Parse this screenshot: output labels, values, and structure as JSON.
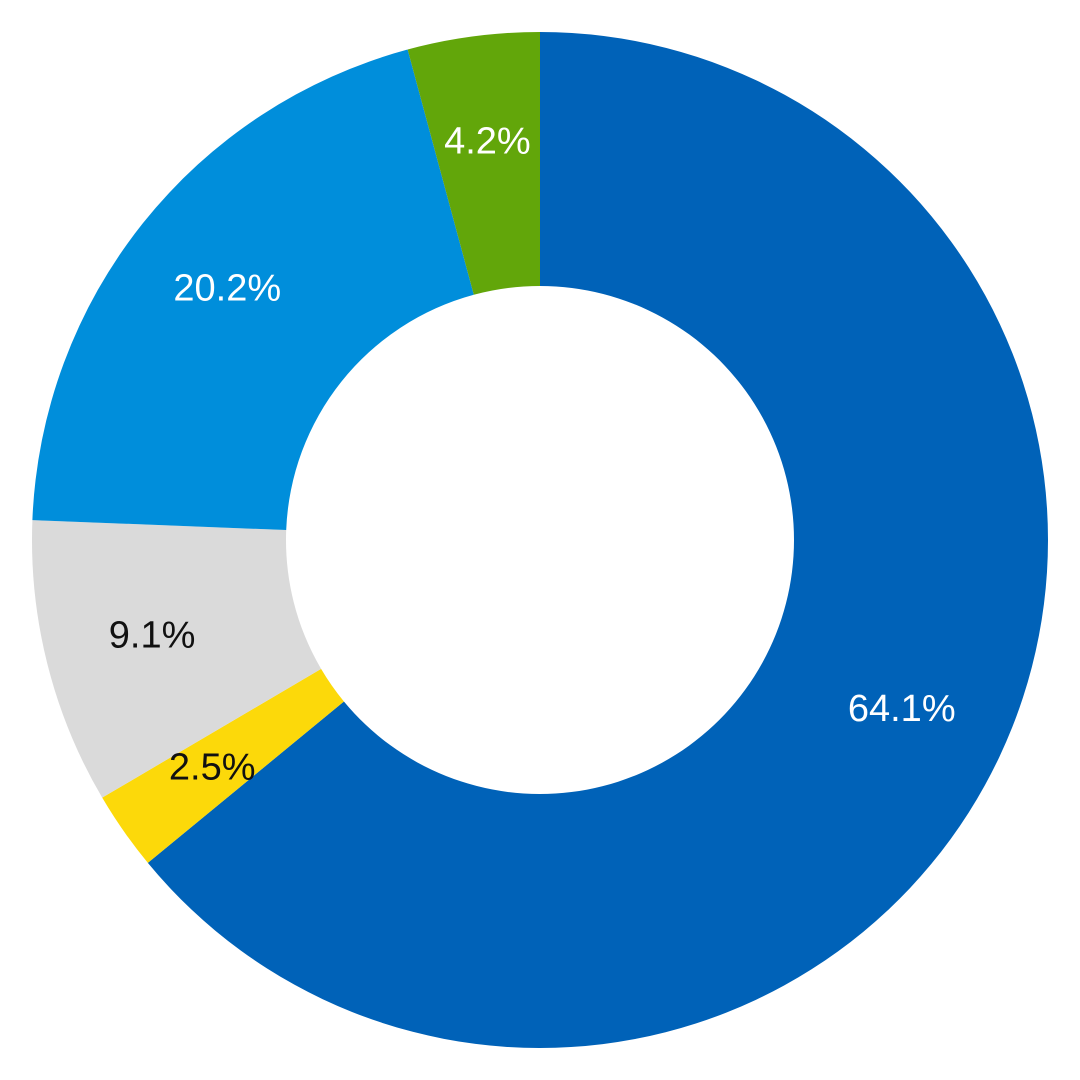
{
  "chart_data": {
    "type": "pie",
    "donut": true,
    "title": "",
    "legend": "none",
    "slices": [
      {
        "label": "64.1%",
        "value": 64.1,
        "color": "#0062B8",
        "label_color": "#ffffff"
      },
      {
        "label": "2.5%",
        "value": 2.5,
        "color": "#FCD90A",
        "label_color": "#111111"
      },
      {
        "label": "9.1%",
        "value": 9.1,
        "color": "#DADADA",
        "label_color": "#111111"
      },
      {
        "label": "20.2%",
        "value": 20.2,
        "color": "#008EDB",
        "label_color": "#ffffff"
      },
      {
        "label": "4.2%",
        "value": 4.2,
        "color": "#62A60A",
        "label_color": "#ffffff"
      }
    ]
  }
}
